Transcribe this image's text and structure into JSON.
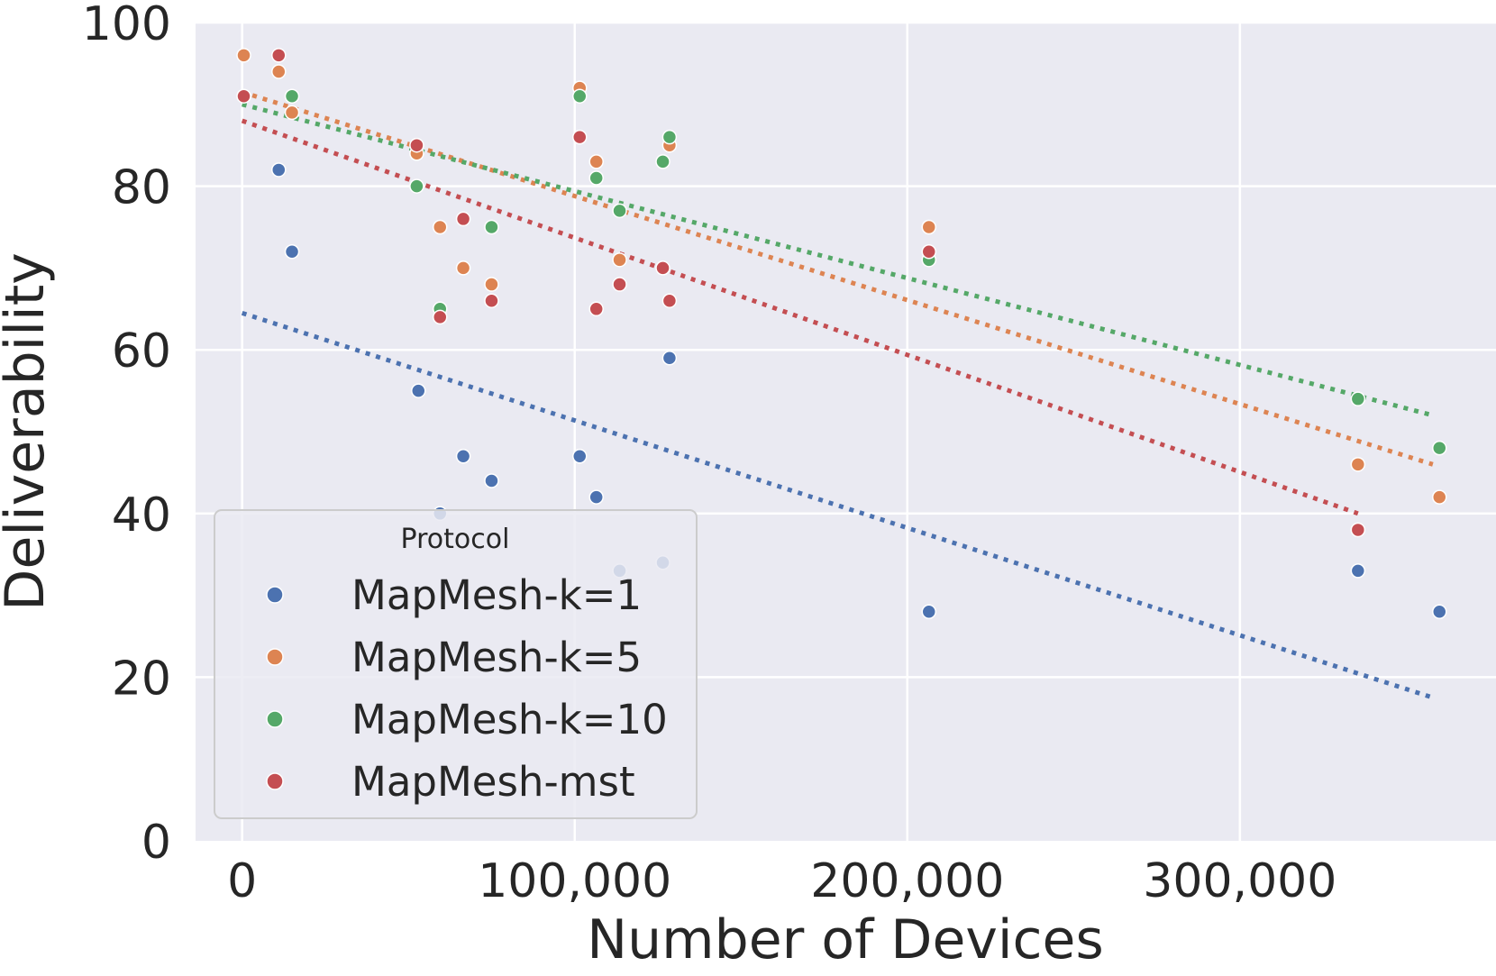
{
  "chart_data": {
    "type": "scatter",
    "title": "",
    "xlabel": "Number of Devices",
    "ylabel": "Deliverability",
    "xlim": [
      -14000,
      377000
    ],
    "ylim": [
      0,
      100
    ],
    "x_ticks": [
      0,
      100000,
      200000,
      300000
    ],
    "x_tick_labels": [
      "0",
      "100,000",
      "200,000",
      "300,000"
    ],
    "y_ticks": [
      0,
      20,
      40,
      60,
      80,
      100
    ],
    "y_tick_labels": [
      "0",
      "20",
      "40",
      "60",
      "80",
      "100"
    ],
    "grid": true,
    "legend": {
      "title": "Protocol",
      "placement": "lower-left",
      "entries": [
        "MapMesh-k=1",
        "MapMesh-k=5",
        "MapMesh-k=10",
        "MapMesh-mst"
      ]
    },
    "series": [
      {
        "name": "MapMesh-k=1",
        "color": "#4c72b0",
        "points": [
          {
            "x": 11000,
            "y": 82
          },
          {
            "x": 15000,
            "y": 72
          },
          {
            "x": 53000,
            "y": 55
          },
          {
            "x": 59500,
            "y": 40
          },
          {
            "x": 66500,
            "y": 47
          },
          {
            "x": 75000,
            "y": 44
          },
          {
            "x": 101500,
            "y": 47
          },
          {
            "x": 106500,
            "y": 42
          },
          {
            "x": 113500,
            "y": 33
          },
          {
            "x": 126500,
            "y": 34
          },
          {
            "x": 128500,
            "y": 59
          },
          {
            "x": 206500,
            "y": 28
          },
          {
            "x": 335500,
            "y": 33
          },
          {
            "x": 360000,
            "y": 28
          }
        ],
        "trend": {
          "x": [
            0,
            358000
          ],
          "y": [
            64.5,
            17.5
          ]
        }
      },
      {
        "name": "MapMesh-k=5",
        "color": "#dd8452",
        "points": [
          {
            "x": 500,
            "y": 96
          },
          {
            "x": 11000,
            "y": 94
          },
          {
            "x": 15000,
            "y": 89
          },
          {
            "x": 52500,
            "y": 84
          },
          {
            "x": 59500,
            "y": 75
          },
          {
            "x": 66500,
            "y": 70
          },
          {
            "x": 75000,
            "y": 68
          },
          {
            "x": 101500,
            "y": 92
          },
          {
            "x": 106500,
            "y": 83
          },
          {
            "x": 113500,
            "y": 71
          },
          {
            "x": 128500,
            "y": 85
          },
          {
            "x": 206500,
            "y": 75
          },
          {
            "x": 335500,
            "y": 46
          },
          {
            "x": 360000,
            "y": 42
          }
        ],
        "trend": {
          "x": [
            0,
            358000
          ],
          "y": [
            91.5,
            46.0
          ]
        }
      },
      {
        "name": "MapMesh-k=10",
        "color": "#55a868",
        "points": [
          {
            "x": 15000,
            "y": 91
          },
          {
            "x": 52500,
            "y": 80
          },
          {
            "x": 59500,
            "y": 65
          },
          {
            "x": 75000,
            "y": 75
          },
          {
            "x": 101500,
            "y": 91
          },
          {
            "x": 106500,
            "y": 81
          },
          {
            "x": 113500,
            "y": 77
          },
          {
            "x": 126500,
            "y": 83
          },
          {
            "x": 128500,
            "y": 86
          },
          {
            "x": 206500,
            "y": 71
          },
          {
            "x": 335500,
            "y": 54
          },
          {
            "x": 360000,
            "y": 48
          }
        ],
        "trend": {
          "x": [
            0,
            358000
          ],
          "y": [
            90.0,
            52.0
          ]
        }
      },
      {
        "name": "MapMesh-mst",
        "color": "#c44e52",
        "points": [
          {
            "x": 500,
            "y": 91
          },
          {
            "x": 11000,
            "y": 96
          },
          {
            "x": 52500,
            "y": 85
          },
          {
            "x": 59500,
            "y": 64
          },
          {
            "x": 66500,
            "y": 76
          },
          {
            "x": 75000,
            "y": 66
          },
          {
            "x": 101500,
            "y": 86
          },
          {
            "x": 106500,
            "y": 65
          },
          {
            "x": 113500,
            "y": 68
          },
          {
            "x": 126500,
            "y": 70
          },
          {
            "x": 128500,
            "y": 66
          },
          {
            "x": 206500,
            "y": 72
          },
          {
            "x": 335500,
            "y": 38
          }
        ],
        "trend": {
          "x": [
            0,
            335500
          ],
          "y": [
            88.0,
            40.0
          ]
        }
      }
    ]
  }
}
